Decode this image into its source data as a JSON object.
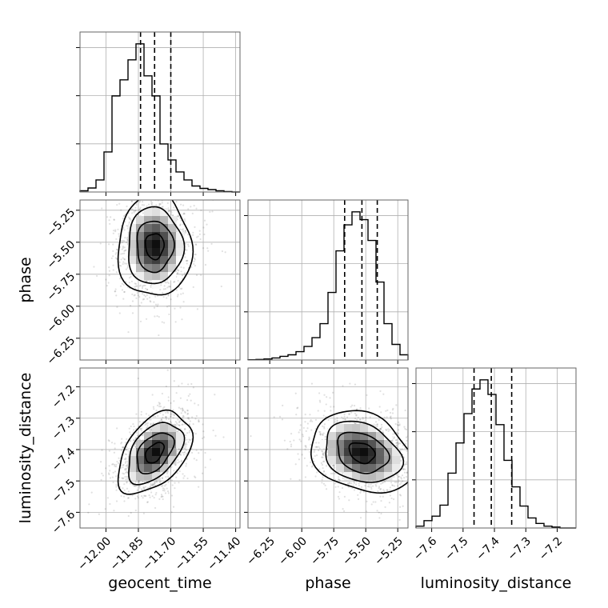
{
  "chart_data": {
    "type": "corner",
    "parameters": [
      "geocent_time",
      "phase",
      "luminosity_distance"
    ],
    "axis_labels": {
      "geocent_time": "geocent_time",
      "phase": "phase",
      "luminosity_distance": "luminosity_distance"
    },
    "ranges": {
      "geocent_time": [
        -12.12,
        -11.38
      ],
      "phase": [
        -6.42,
        -5.17
      ],
      "luminosity_distance": [
        -7.65,
        -7.14
      ]
    },
    "ticks": {
      "geocent_time": [
        "-12.00",
        "-11.85",
        "-11.70",
        "-11.55",
        "-11.40"
      ],
      "phase": [
        "-6.25",
        "-6.00",
        "-5.75",
        "-5.50",
        "-5.25"
      ],
      "luminosity_distance": [
        "-7.6",
        "-7.5",
        "-7.4",
        "-7.3",
        "-7.2"
      ]
    },
    "tick_values": {
      "geocent_time": [
        -12.0,
        -11.85,
        -11.7,
        -11.55,
        -11.4
      ],
      "phase": [
        -6.25,
        -6.0,
        -5.75,
        -5.5,
        -5.25
      ],
      "luminosity_distance": [
        -7.6,
        -7.5,
        -7.4,
        -7.3,
        -7.2
      ]
    },
    "quantiles": {
      "geocent_time": [
        -11.84,
        -11.775,
        -11.7
      ],
      "phase": [
        -5.665,
        -5.53,
        -5.41
      ],
      "luminosity_distance": [
        -7.465,
        -7.41,
        -7.345
      ]
    },
    "marginals": {
      "geocent_time": [
        0.3,
        1,
        3,
        10,
        24,
        28,
        33,
        37,
        29,
        24,
        12,
        8,
        5,
        3,
        1.5,
        0.9,
        0.6,
        0.3,
        0.1,
        0
      ],
      "phase": [
        0.05,
        0.1,
        0.2,
        0.4,
        0.7,
        1,
        1.6,
        2.6,
        4.3,
        7,
        13,
        21,
        26,
        28.5,
        27,
        23,
        15,
        7,
        3,
        1
      ],
      "luminosity_distance": [
        0.2,
        0.8,
        1.3,
        2.5,
        6,
        9.3,
        12.5,
        15.2,
        16.2,
        14.6,
        11.3,
        7.4,
        4.5,
        2.4,
        1.1,
        0.5,
        0.2,
        0.1,
        0,
        0
      ]
    },
    "joint_centers": {
      "phase_vs_geocent_time": [
        -11.775,
        -5.53
      ],
      "luminosity_distance_vs_geocent_time": [
        -11.775,
        -7.41
      ],
      "luminosity_distance_vs_phase": [
        -5.53,
        -7.41
      ]
    },
    "joint_widths": {
      "phase_vs_geocent_time": [
        0.085,
        0.2
      ],
      "luminosity_distance_vs_geocent_time": [
        0.085,
        0.065
      ],
      "luminosity_distance_vs_phase": [
        0.2,
        0.065
      ]
    },
    "joint_correlation": {
      "phase_vs_geocent_time": 0.0,
      "luminosity_distance_vs_geocent_time": 0.45,
      "luminosity_distance_vs_phase": -0.25
    },
    "contour_levels": [
      0.118,
      0.393,
      0.675,
      0.865
    ],
    "grid": true,
    "colors": {
      "line": "#000000",
      "grid": "#b0b0b0",
      "points": "#000000"
    }
  }
}
